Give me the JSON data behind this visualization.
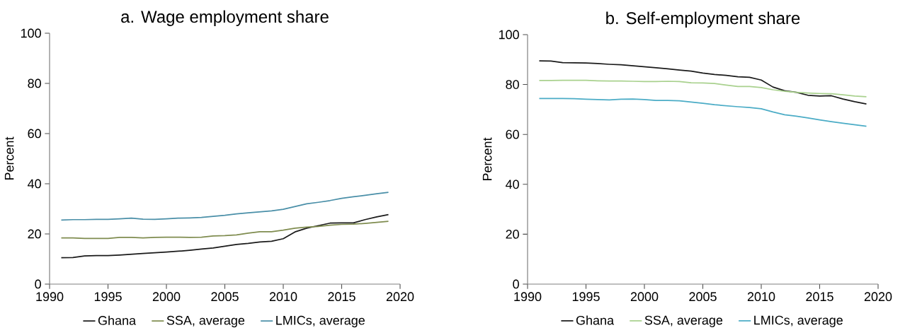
{
  "chart_data": [
    {
      "type": "line",
      "title": "a.  Wage employment share",
      "ylabel": "Percent",
      "legend": "bottom",
      "marker": "none",
      "grid": false,
      "xlim": [
        1990,
        2020
      ],
      "xticks": [
        1990,
        1995,
        2000,
        2005,
        2010,
        2015,
        2020
      ],
      "ylim": [
        0,
        100
      ],
      "yticks": [
        0,
        20,
        40,
        60,
        80,
        100
      ],
      "x": [
        1991,
        1992,
        1993,
        1994,
        1995,
        1996,
        1997,
        1998,
        1999,
        2000,
        2001,
        2002,
        2003,
        2004,
        2005,
        2006,
        2007,
        2008,
        2009,
        2010,
        2011,
        2012,
        2013,
        2014,
        2015,
        2016,
        2017,
        2018,
        2019
      ],
      "series": [
        {
          "name": "Ghana",
          "color": "#1a1a1a",
          "values": [
            10.5,
            10.6,
            11.2,
            11.4,
            11.4,
            11.6,
            11.9,
            12.2,
            12.5,
            12.8,
            13.1,
            13.5,
            14.0,
            14.4,
            15.1,
            15.8,
            16.2,
            16.8,
            17.1,
            18.1,
            20.8,
            22.3,
            23.3,
            24.3,
            24.4,
            24.4,
            25.7,
            26.8,
            27.7
          ]
        },
        {
          "name": "SSA, average",
          "color": "#7f8c4f",
          "values": [
            18.4,
            18.4,
            18.2,
            18.2,
            18.2,
            18.6,
            18.6,
            18.4,
            18.6,
            18.7,
            18.7,
            18.6,
            18.7,
            19.2,
            19.3,
            19.6,
            20.3,
            20.9,
            20.9,
            21.5,
            22.3,
            22.7,
            23.0,
            23.5,
            23.8,
            23.9,
            24.2,
            24.6,
            25.0
          ]
        },
        {
          "name": "LMICs, average",
          "color": "#4a8fa8",
          "values": [
            25.5,
            25.7,
            25.7,
            25.8,
            25.8,
            26.0,
            26.3,
            25.9,
            25.8,
            26.0,
            26.3,
            26.4,
            26.6,
            27.0,
            27.4,
            28.0,
            28.4,
            28.8,
            29.2,
            29.8,
            30.9,
            32.0,
            32.6,
            33.3,
            34.2,
            34.8,
            35.4,
            36.0,
            36.6
          ]
        }
      ]
    },
    {
      "type": "line",
      "title": "b.  Self-employment share",
      "ylabel": "Percent",
      "legend": "bottom",
      "marker": "none",
      "grid": false,
      "xlim": [
        1990,
        2020
      ],
      "xticks": [
        1990,
        1995,
        2000,
        2005,
        2010,
        2015,
        2020
      ],
      "ylim": [
        0,
        100
      ],
      "yticks": [
        0,
        20,
        40,
        60,
        80,
        100
      ],
      "x": [
        1991,
        1992,
        1993,
        1994,
        1995,
        1996,
        1997,
        1998,
        1999,
        2000,
        2001,
        2002,
        2003,
        2004,
        2005,
        2006,
        2007,
        2008,
        2009,
        2010,
        2011,
        2012,
        2013,
        2014,
        2015,
        2016,
        2017,
        2018,
        2019
      ],
      "series": [
        {
          "name": "Ghana",
          "color": "#1a1a1a",
          "values": [
            89.5,
            89.4,
            88.8,
            88.7,
            88.6,
            88.4,
            88.1,
            87.9,
            87.5,
            87.1,
            86.7,
            86.3,
            85.8,
            85.4,
            84.6,
            84.0,
            83.7,
            83.1,
            82.9,
            81.8,
            79.0,
            77.5,
            76.9,
            75.7,
            75.4,
            75.5,
            74.2,
            73.1,
            72.2
          ]
        },
        {
          "name": "SSA, average",
          "color": "#a9d18e",
          "values": [
            81.6,
            81.6,
            81.7,
            81.7,
            81.7,
            81.5,
            81.4,
            81.4,
            81.3,
            81.2,
            81.2,
            81.3,
            81.2,
            80.7,
            80.6,
            80.4,
            79.8,
            79.2,
            79.2,
            78.8,
            77.9,
            77.3,
            76.9,
            76.6,
            76.4,
            76.3,
            75.9,
            75.4,
            75.1
          ]
        },
        {
          "name": "LMICs, average",
          "color": "#4bacc6",
          "values": [
            74.4,
            74.4,
            74.4,
            74.3,
            74.1,
            74.0,
            73.8,
            74.1,
            74.2,
            74.0,
            73.6,
            73.6,
            73.5,
            73.0,
            72.5,
            71.9,
            71.5,
            71.1,
            70.8,
            70.3,
            69.0,
            67.9,
            67.3,
            66.6,
            65.8,
            65.1,
            64.5,
            63.9,
            63.3
          ]
        }
      ]
    }
  ]
}
